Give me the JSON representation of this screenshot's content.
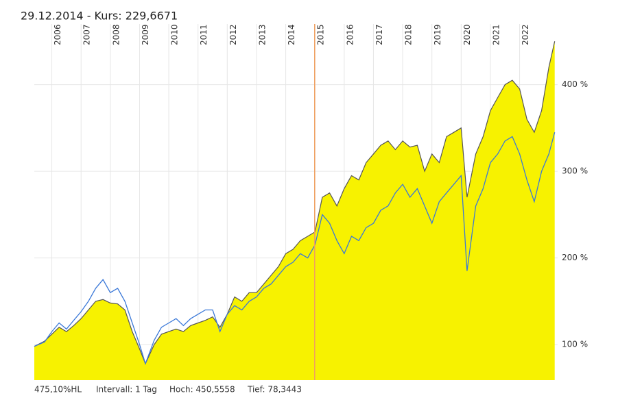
{
  "chart_data": {
    "type": "line",
    "title": "29.12.2014  -  Kurs: 229,6671",
    "footer": [
      "475,10%HL",
      "Intervall: 1 Tag",
      "Hoch: 450,5558",
      "Tief: 78,3443"
    ],
    "x": [
      2005.4,
      2005.75,
      2006,
      2006.25,
      2006.5,
      2006.75,
      2007,
      2007.25,
      2007.5,
      2007.75,
      2008,
      2008.25,
      2008.5,
      2008.75,
      2009,
      2009.2,
      2009.5,
      2009.75,
      2010,
      2010.25,
      2010.5,
      2010.75,
      2011,
      2011.25,
      2011.5,
      2011.75,
      2012,
      2012.25,
      2012.5,
      2012.75,
      2013,
      2013.25,
      2013.5,
      2013.75,
      2014,
      2014.25,
      2014.5,
      2014.75,
      2015,
      2015.25,
      2015.5,
      2015.75,
      2016,
      2016.25,
      2016.5,
      2016.75,
      2017,
      2017.25,
      2017.5,
      2017.75,
      2018,
      2018.25,
      2018.5,
      2018.75,
      2019,
      2019.25,
      2019.5,
      2019.75,
      2020,
      2020.2,
      2020.5,
      2020.75,
      2021,
      2021.25,
      2021.5,
      2021.75,
      2022,
      2022.25,
      2022.5,
      2022.75,
      2023,
      2023.2
    ],
    "series": [
      {
        "color": "#f7f200",
        "line_color": "#555555",
        "fill": true,
        "values": [
          98,
          104,
          112,
          120,
          115,
          122,
          130,
          140,
          150,
          152,
          148,
          147,
          140,
          115,
          95,
          78,
          100,
          112,
          115,
          118,
          115,
          122,
          125,
          128,
          132,
          120,
          135,
          155,
          150,
          160,
          160,
          170,
          180,
          190,
          205,
          210,
          220,
          225,
          230,
          270,
          275,
          260,
          280,
          295,
          290,
          310,
          320,
          330,
          335,
          325,
          335,
          328,
          330,
          300,
          320,
          310,
          340,
          345,
          350,
          270,
          320,
          340,
          370,
          385,
          400,
          405,
          395,
          360,
          345,
          370,
          420,
          450
        ]
      },
      {
        "color": "#3a78d8",
        "fill": false,
        "values": [
          98,
          103,
          115,
          125,
          118,
          128,
          138,
          150,
          165,
          175,
          160,
          165,
          150,
          125,
          100,
          78,
          105,
          120,
          125,
          130,
          122,
          130,
          135,
          140,
          140,
          115,
          135,
          145,
          140,
          150,
          155,
          165,
          170,
          180,
          190,
          195,
          205,
          200,
          215,
          250,
          240,
          220,
          205,
          225,
          220,
          235,
          240,
          255,
          260,
          275,
          285,
          270,
          280,
          260,
          240,
          265,
          275,
          285,
          295,
          185,
          260,
          280,
          310,
          320,
          335,
          340,
          320,
          290,
          265,
          300,
          320,
          345
        ]
      }
    ],
    "marker": {
      "x": 2014.99,
      "color": "#f0a060"
    },
    "xlim": [
      2005.4,
      2023.3
    ],
    "xticks": [
      2006,
      2007,
      2008,
      2009,
      2010,
      2011,
      2012,
      2013,
      2014,
      2015,
      2016,
      2017,
      2018,
      2019,
      2020,
      2021,
      2022
    ],
    "ylim": [
      59,
      470
    ],
    "yticks": [
      {
        "value": 100,
        "label": "100 %"
      },
      {
        "value": 200,
        "label": "200 %"
      },
      {
        "value": 300,
        "label": "300 %"
      },
      {
        "value": 400,
        "label": "400 %"
      }
    ],
    "grid": true
  }
}
